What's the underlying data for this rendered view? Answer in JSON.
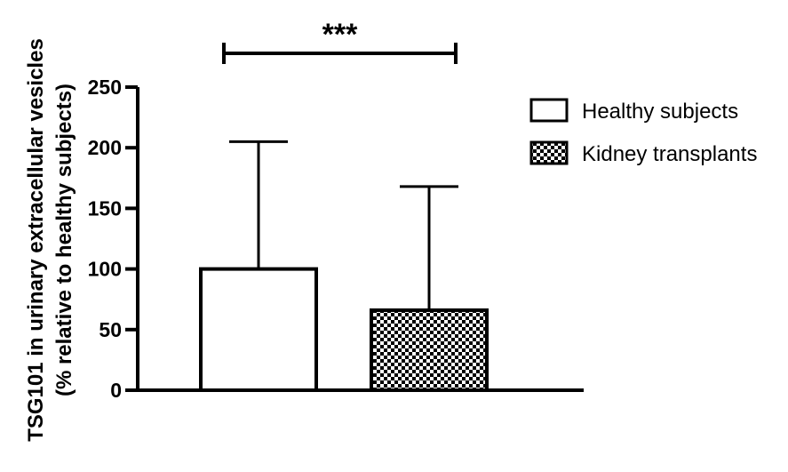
{
  "chart_data": {
    "type": "bar",
    "categories": [
      "Healthy subjects",
      "Kidney transplants"
    ],
    "values": [
      100,
      66
    ],
    "error_upper": [
      205,
      168
    ],
    "ylabel_line1": "TSG101 in urinary extracellular vesicles",
    "ylabel_line2": "(% relative to healthy subjects)",
    "ylim": [
      0,
      250
    ],
    "yticks": [
      "0",
      "50",
      "100",
      "150",
      "200",
      "250"
    ],
    "grid": false,
    "legend": {
      "position": "right",
      "entries": [
        {
          "label": "Healthy subjects",
          "fill": "white"
        },
        {
          "label": "Kidney transplants",
          "fill": "checkerboard"
        }
      ]
    },
    "significance": {
      "label": "***",
      "between": [
        0,
        1
      ]
    }
  }
}
